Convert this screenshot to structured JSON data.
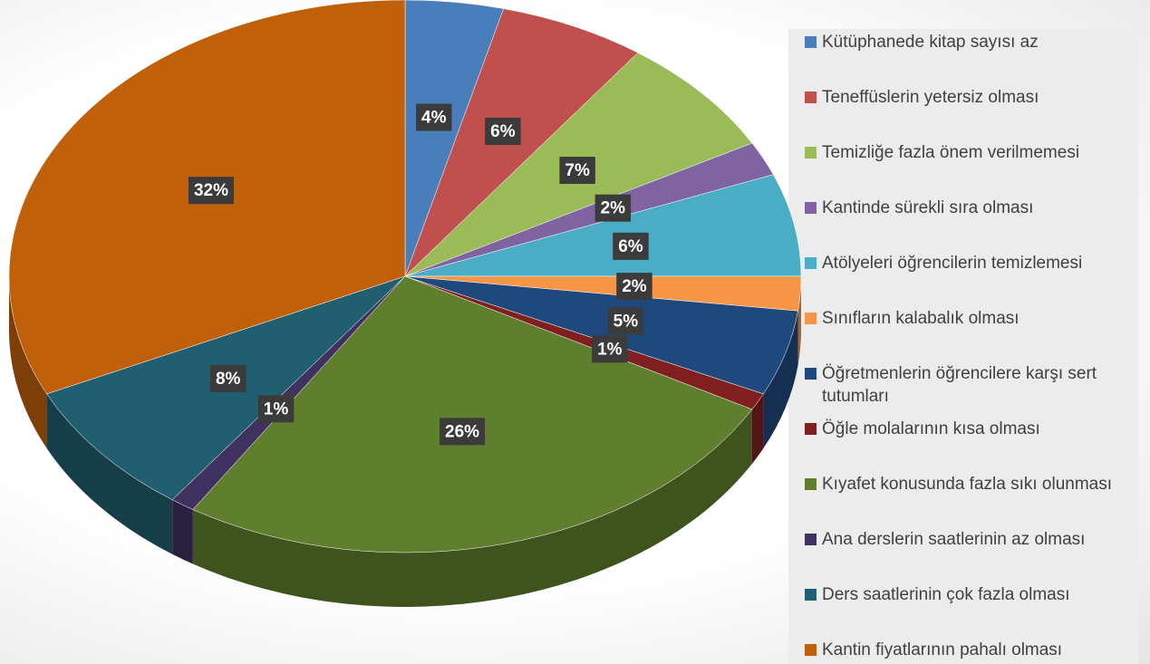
{
  "chart_data": {
    "type": "pie",
    "categories": [
      "Kütüphanede kitap sayısı az",
      "Teneffüslerin yetersiz olması",
      "Temizliğe fazla önem verilmemesi",
      "Kantinde sürekli sıra olması",
      "Atölyeleri öğrencilerin temizlemesi",
      "Sınıfların kalabalık olması",
      "Öğretmenlerin öğrencilere karşı sert tutumları",
      "Öğle molalarının kısa olması",
      "Kıyafet konusunda fazla sıkı olunması",
      "Ana derslerin saatlerinin az olması",
      "Ders saatlerinin çok fazla olması",
      "Kantin fiyatlarının pahalı olması"
    ],
    "values": [
      4,
      6,
      7,
      2,
      6,
      2,
      5,
      1,
      26,
      1,
      8,
      32
    ],
    "value_labels": [
      "4%",
      "6%",
      "7%",
      "2%",
      "6%",
      "2%",
      "5%",
      "1%",
      "26%",
      "1%",
      "8%",
      "32%"
    ],
    "colors": [
      "#4a7ebb",
      "#c0504d",
      "#9bbb59",
      "#8064a2",
      "#4bacc6",
      "#f79646",
      "#1f497d",
      "#7f1f1f",
      "#5f7f2e",
      "#3f3160",
      "#215f70",
      "#c0600a"
    ],
    "legend": "right"
  }
}
